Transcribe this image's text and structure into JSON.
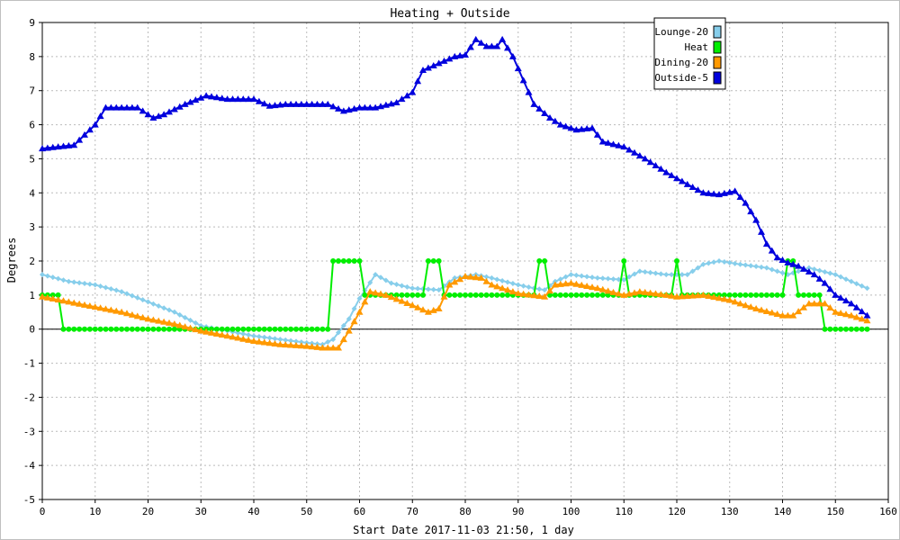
{
  "chart_data": {
    "type": "line",
    "title": "Heating + Outside",
    "xlabel": "Start Date 2017-11-03 21:50, 1 day",
    "ylabel": "Degrees",
    "xlim": [
      0,
      160
    ],
    "ylim": [
      -5,
      9
    ],
    "x_ticks": [
      "0",
      "10",
      "20",
      "30",
      "40",
      "50",
      "60",
      "70",
      "80",
      "90",
      "100",
      "110",
      "120",
      "130",
      "140",
      "150",
      "160"
    ],
    "y_ticks": [
      "9",
      "8",
      "7",
      "6",
      "5",
      "4",
      "3",
      "2",
      "1",
      "0",
      "-1",
      "-2",
      "-3",
      "-4",
      "-5"
    ],
    "grid": true,
    "legend_position": "top-right",
    "series": [
      {
        "name": "Lounge-20",
        "color": "#87ceeb",
        "marker": "diamond",
        "points": [
          [
            0,
            1.6
          ],
          [
            5,
            1.4
          ],
          [
            10,
            1.3
          ],
          [
            15,
            1.1
          ],
          [
            20,
            0.8
          ],
          [
            25,
            0.5
          ],
          [
            30,
            0.1
          ],
          [
            35,
            -0.05
          ],
          [
            40,
            -0.2
          ],
          [
            45,
            -0.3
          ],
          [
            50,
            -0.4
          ],
          [
            53,
            -0.45
          ],
          [
            55,
            -0.3
          ],
          [
            58,
            0.3
          ],
          [
            60,
            0.9
          ],
          [
            63,
            1.6
          ],
          [
            66,
            1.35
          ],
          [
            70,
            1.2
          ],
          [
            75,
            1.15
          ],
          [
            78,
            1.5
          ],
          [
            82,
            1.6
          ],
          [
            85,
            1.5
          ],
          [
            90,
            1.3
          ],
          [
            93,
            1.2
          ],
          [
            95,
            1.15
          ],
          [
            97,
            1.4
          ],
          [
            100,
            1.6
          ],
          [
            105,
            1.5
          ],
          [
            110,
            1.45
          ],
          [
            113,
            1.7
          ],
          [
            118,
            1.6
          ],
          [
            122,
            1.6
          ],
          [
            125,
            1.9
          ],
          [
            128,
            2.0
          ],
          [
            132,
            1.9
          ],
          [
            137,
            1.8
          ],
          [
            141,
            1.6
          ],
          [
            145,
            1.8
          ],
          [
            150,
            1.6
          ],
          [
            153,
            1.4
          ],
          [
            156,
            1.2
          ]
        ]
      },
      {
        "name": "Heat",
        "color": "#00ee00",
        "marker": "circle",
        "points": [
          [
            0,
            1
          ],
          [
            3,
            1
          ],
          [
            4,
            0
          ],
          [
            54,
            0
          ],
          [
            55,
            2
          ],
          [
            60,
            2
          ],
          [
            61,
            1
          ],
          [
            72,
            1
          ],
          [
            73,
            2
          ],
          [
            75,
            2
          ],
          [
            76,
            1
          ],
          [
            93,
            1
          ],
          [
            94,
            2
          ],
          [
            95,
            2
          ],
          [
            96,
            1
          ],
          [
            109,
            1
          ],
          [
            110,
            2
          ],
          [
            111,
            1
          ],
          [
            119,
            1
          ],
          [
            120,
            2
          ],
          [
            121,
            1
          ],
          [
            140,
            1
          ],
          [
            141,
            2
          ],
          [
            142,
            2
          ],
          [
            143,
            1
          ],
          [
            147,
            1
          ],
          [
            148,
            0
          ],
          [
            156,
            0
          ]
        ]
      },
      {
        "name": "Dining-20",
        "color": "#ff9900",
        "marker": "triangle",
        "points": [
          [
            0,
            0.95
          ],
          [
            5,
            0.8
          ],
          [
            10,
            0.65
          ],
          [
            15,
            0.5
          ],
          [
            20,
            0.3
          ],
          [
            25,
            0.15
          ],
          [
            30,
            -0.05
          ],
          [
            35,
            -0.2
          ],
          [
            40,
            -0.35
          ],
          [
            45,
            -0.45
          ],
          [
            50,
            -0.5
          ],
          [
            53,
            -0.55
          ],
          [
            56,
            -0.55
          ],
          [
            58,
            -0.05
          ],
          [
            60,
            0.5
          ],
          [
            62,
            1.1
          ],
          [
            65,
            1.0
          ],
          [
            70,
            0.7
          ],
          [
            73,
            0.5
          ],
          [
            75,
            0.6
          ],
          [
            77,
            1.3
          ],
          [
            80,
            1.55
          ],
          [
            83,
            1.5
          ],
          [
            85,
            1.3
          ],
          [
            90,
            1.05
          ],
          [
            95,
            0.95
          ],
          [
            97,
            1.3
          ],
          [
            100,
            1.35
          ],
          [
            105,
            1.2
          ],
          [
            110,
            1.0
          ],
          [
            113,
            1.1
          ],
          [
            118,
            1.0
          ],
          [
            120,
            0.95
          ],
          [
            125,
            1.0
          ],
          [
            130,
            0.85
          ],
          [
            135,
            0.6
          ],
          [
            140,
            0.4
          ],
          [
            142,
            0.4
          ],
          [
            145,
            0.75
          ],
          [
            148,
            0.75
          ],
          [
            150,
            0.5
          ],
          [
            153,
            0.4
          ],
          [
            156,
            0.25
          ]
        ]
      },
      {
        "name": "Outside-5",
        "color": "#0000dd",
        "marker": "triangle",
        "points": [
          [
            0,
            5.3
          ],
          [
            3,
            5.35
          ],
          [
            6,
            5.4
          ],
          [
            8,
            5.7
          ],
          [
            10,
            6.0
          ],
          [
            12,
            6.5
          ],
          [
            15,
            6.5
          ],
          [
            18,
            6.5
          ],
          [
            21,
            6.2
          ],
          [
            23,
            6.3
          ],
          [
            27,
            6.6
          ],
          [
            31,
            6.85
          ],
          [
            35,
            6.75
          ],
          [
            40,
            6.75
          ],
          [
            43,
            6.55
          ],
          [
            46,
            6.6
          ],
          [
            50,
            6.6
          ],
          [
            54,
            6.6
          ],
          [
            57,
            6.4
          ],
          [
            60,
            6.5
          ],
          [
            63,
            6.5
          ],
          [
            67,
            6.65
          ],
          [
            70,
            6.95
          ],
          [
            72,
            7.6
          ],
          [
            75,
            7.8
          ],
          [
            78,
            8.0
          ],
          [
            80,
            8.05
          ],
          [
            82,
            8.5
          ],
          [
            84,
            8.3
          ],
          [
            86,
            8.3
          ],
          [
            87,
            8.5
          ],
          [
            89,
            8.0
          ],
          [
            91,
            7.3
          ],
          [
            93,
            6.6
          ],
          [
            96,
            6.2
          ],
          [
            98,
            6.0
          ],
          [
            101,
            5.85
          ],
          [
            104,
            5.9
          ],
          [
            106,
            5.5
          ],
          [
            110,
            5.35
          ],
          [
            114,
            5.0
          ],
          [
            118,
            4.6
          ],
          [
            122,
            4.25
          ],
          [
            125,
            4.0
          ],
          [
            128,
            3.95
          ],
          [
            131,
            4.05
          ],
          [
            133,
            3.7
          ],
          [
            135,
            3.2
          ],
          [
            137,
            2.5
          ],
          [
            139,
            2.1
          ],
          [
            141,
            1.95
          ],
          [
            143,
            1.85
          ],
          [
            146,
            1.6
          ],
          [
            148,
            1.35
          ],
          [
            150,
            1.0
          ],
          [
            153,
            0.75
          ],
          [
            156,
            0.4
          ]
        ]
      }
    ]
  }
}
